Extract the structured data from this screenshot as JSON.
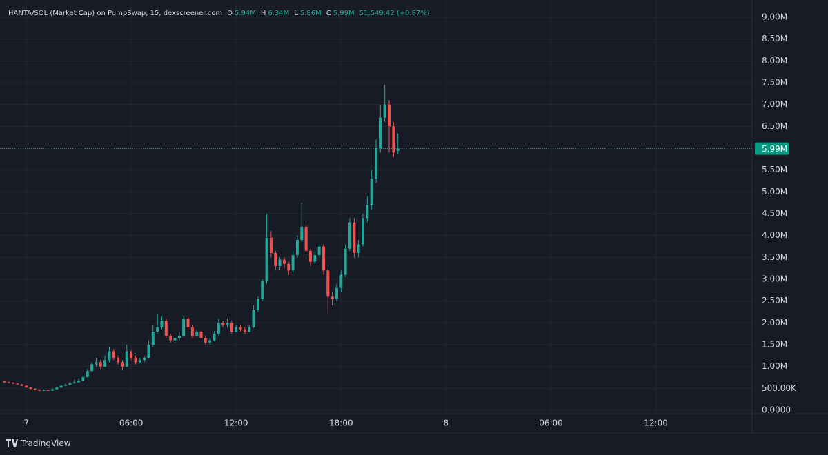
{
  "chart_data": {
    "type": "candlestick",
    "title": "HANTA/SOL (Market Cap) on PumpSwap, 15, dexscreener.com",
    "ohlc_header": [
      {
        "key": "O",
        "value": "5.94M"
      },
      {
        "key": "H",
        "value": "6.34M"
      },
      {
        "key": "L",
        "value": "5.86M"
      },
      {
        "key": "C",
        "value": "5.99M"
      }
    ],
    "change": "51,549.42 (+0.87%)",
    "brand": "TradingView",
    "up_color": "#26a69a",
    "down_color": "#ef5350",
    "grid": true,
    "x": [
      -1.25,
      -1,
      -0.75,
      -0.5,
      -0.25,
      0,
      0.25,
      0.5,
      0.75,
      1,
      1.25,
      1.5,
      1.75,
      2,
      2.25,
      2.5,
      2.75,
      3,
      3.25,
      3.5,
      3.75,
      4,
      4.25,
      4.5,
      4.75,
      5,
      5.25,
      5.5,
      5.75,
      6,
      6.25,
      6.5,
      6.75,
      7,
      7.25,
      7.5,
      7.75,
      8,
      8.25,
      8.5,
      8.75,
      9,
      9.25,
      9.5,
      9.75,
      10,
      10.25,
      10.5,
      10.75,
      11,
      11.25,
      11.5,
      11.75,
      12,
      12.25,
      12.5,
      12.75,
      13,
      13.25,
      13.5,
      13.75,
      14,
      14.25,
      14.5,
      14.75,
      15,
      15.25,
      15.5,
      15.75,
      16,
      16.25,
      16.5,
      16.75,
      17,
      17.25,
      17.5,
      17.75,
      18,
      18.25,
      18.5,
      18.75,
      19,
      19.25,
      19.5,
      19.75,
      20,
      20.25,
      20.5,
      20.75,
      21,
      21.25
    ],
    "open": [
      660000,
      640000,
      630000,
      610000,
      590000,
      560000,
      520000,
      490000,
      470000,
      450000,
      460000,
      450000,
      480000,
      520000,
      560000,
      580000,
      620000,
      640000,
      680000,
      760000,
      900000,
      1050000,
      1100000,
      1000000,
      1150000,
      1350000,
      1200000,
      1100000,
      1000000,
      1350000,
      1200000,
      1100000,
      1150000,
      1200000,
      1500000,
      1800000,
      1900000,
      2050000,
      1700000,
      1600000,
      1650000,
      1700000,
      2100000,
      1900000,
      1700000,
      1800000,
      1650000,
      1550000,
      1600000,
      1750000,
      2000000,
      1950000,
      2000000,
      1800000,
      1900000,
      1850000,
      1800000,
      1900000,
      2300000,
      2550000,
      2950000,
      3950000,
      3600000,
      3300000,
      3450000,
      3350000,
      3200000,
      3550000,
      3900000,
      4200000,
      3650000,
      3400000,
      3550000,
      3750000,
      3200000,
      2600000,
      2550000,
      2800000,
      3100000,
      3700000,
      4300000,
      3600000,
      3800000,
      4400000,
      4700000,
      5300000,
      6000000,
      6700000,
      7000000,
      6500000,
      5940000
    ],
    "high": [
      680000,
      650000,
      640000,
      620000,
      600000,
      570000,
      530000,
      500000,
      480000,
      480000,
      470000,
      500000,
      540000,
      580000,
      620000,
      650000,
      700000,
      720000,
      800000,
      950000,
      1100000,
      1200000,
      1150000,
      1250000,
      1450000,
      1400000,
      1250000,
      1150000,
      1500000,
      1380000,
      1250000,
      1200000,
      1250000,
      1600000,
      1950000,
      2200000,
      2150000,
      2100000,
      1750000,
      1700000,
      1800000,
      2150000,
      2120000,
      1950000,
      1850000,
      1820000,
      1700000,
      1650000,
      1800000,
      2100000,
      2050000,
      2100000,
      2050000,
      1950000,
      1950000,
      1900000,
      1950000,
      2400000,
      2600000,
      3000000,
      4500000,
      4100000,
      3650000,
      3500000,
      3500000,
      3400000,
      3650000,
      4000000,
      4750000,
      4250000,
      3700000,
      3650000,
      3800000,
      3800000,
      3250000,
      2700000,
      2900000,
      3200000,
      3800000,
      4400000,
      4400000,
      3900000,
      4500000,
      4900000,
      5500000,
      6200000,
      7000000,
      7450000,
      7100000,
      6600000,
      6340000
    ],
    "low": [
      630000,
      620000,
      600000,
      580000,
      550000,
      510000,
      480000,
      450000,
      430000,
      440000,
      440000,
      440000,
      470000,
      510000,
      550000,
      570000,
      610000,
      630000,
      660000,
      750000,
      880000,
      1000000,
      950000,
      980000,
      1100000,
      1150000,
      1050000,
      920000,
      980000,
      1150000,
      1050000,
      1080000,
      1100000,
      1180000,
      1450000,
      1750000,
      1850000,
      1650000,
      1550000,
      1550000,
      1600000,
      1680000,
      1850000,
      1650000,
      1680000,
      1600000,
      1500000,
      1500000,
      1580000,
      1700000,
      1900000,
      1900000,
      1750000,
      1780000,
      1800000,
      1750000,
      1780000,
      1880000,
      2250000,
      2500000,
      2900000,
      3500000,
      3200000,
      3200000,
      3250000,
      3100000,
      3150000,
      3500000,
      3850000,
      3550000,
      3300000,
      3350000,
      3500000,
      3100000,
      2200000,
      2400000,
      2500000,
      2700000,
      3050000,
      3650000,
      3500000,
      3500000,
      3750000,
      4300000,
      4600000,
      5200000,
      5900000,
      6600000,
      5900000,
      5800000,
      5860000
    ],
    "close": [
      640000,
      630000,
      610000,
      590000,
      560000,
      520000,
      490000,
      470000,
      450000,
      460000,
      450000,
      480000,
      520000,
      560000,
      580000,
      620000,
      640000,
      680000,
      760000,
      900000,
      1050000,
      1100000,
      1000000,
      1150000,
      1350000,
      1200000,
      1100000,
      1000000,
      1350000,
      1200000,
      1100000,
      1150000,
      1200000,
      1500000,
      1800000,
      1900000,
      2050000,
      1700000,
      1600000,
      1650000,
      1700000,
      2100000,
      1900000,
      1700000,
      1800000,
      1650000,
      1550000,
      1600000,
      1750000,
      2000000,
      1950000,
      2000000,
      1800000,
      1900000,
      1850000,
      1800000,
      1900000,
      2300000,
      2550000,
      2950000,
      3950000,
      3600000,
      3300000,
      3450000,
      3350000,
      3200000,
      3550000,
      3900000,
      4200000,
      3650000,
      3400000,
      3550000,
      3750000,
      3200000,
      2600000,
      2550000,
      2800000,
      3100000,
      3700000,
      4300000,
      3600000,
      3800000,
      4400000,
      4700000,
      5300000,
      6000000,
      6700000,
      7000000,
      6500000,
      5900000,
      5990000
    ],
    "last_price": {
      "value": 5990000,
      "label": "5.99M"
    },
    "xlim": [
      -1.5,
      41.5
    ],
    "xticks": [
      {
        "value": 0,
        "label": "7"
      },
      {
        "value": 6,
        "label": "06:00"
      },
      {
        "value": 12,
        "label": "12:00"
      },
      {
        "value": 18,
        "label": "18:00"
      },
      {
        "value": 24,
        "label": "8"
      },
      {
        "value": 30,
        "label": "06:00"
      },
      {
        "value": 36,
        "label": "12:00"
      }
    ],
    "ylim": [
      0,
      9000000
    ],
    "yticks": [
      {
        "value": 0,
        "label": "0.0000"
      },
      {
        "value": 500000,
        "label": "500.00K"
      },
      {
        "value": 1000000,
        "label": "1.00M"
      },
      {
        "value": 1500000,
        "label": "1.50M"
      },
      {
        "value": 2000000,
        "label": "2.00M"
      },
      {
        "value": 2500000,
        "label": "2.50M"
      },
      {
        "value": 3000000,
        "label": "3.00M"
      },
      {
        "value": 3500000,
        "label": "3.50M"
      },
      {
        "value": 4000000,
        "label": "4.00M"
      },
      {
        "value": 4500000,
        "label": "4.50M"
      },
      {
        "value": 5000000,
        "label": "5.00M"
      },
      {
        "value": 5500000,
        "label": "5.50M"
      },
      {
        "value": 6000000,
        "label": "6.00M"
      },
      {
        "value": 6500000,
        "label": "6.50M"
      },
      {
        "value": 7000000,
        "label": "7.00M"
      },
      {
        "value": 7500000,
        "label": "7.50M"
      },
      {
        "value": 8000000,
        "label": "8.00M"
      },
      {
        "value": 8500000,
        "label": "8.50M"
      },
      {
        "value": 9000000,
        "label": "9.00M"
      }
    ]
  }
}
